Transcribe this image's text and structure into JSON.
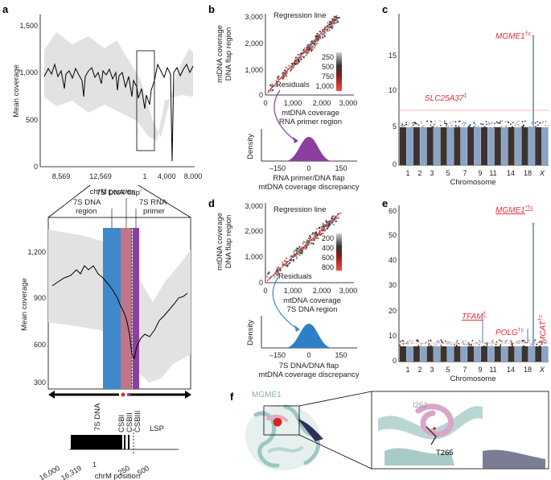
{
  "colors": {
    "dna_region": "#3f88c9",
    "flap": "#f4777f",
    "primer": "#8b3fa1",
    "cb_blue": "#8aa4c8",
    "cb_dark": "#3c3230",
    "sig_line": "#f4a6a6",
    "hit_red": "#e0303a"
  },
  "panels": {
    "a": "a",
    "b": "b",
    "c": "c",
    "d": "d",
    "e": "e",
    "f": "f"
  },
  "panel_a": {
    "top": {
      "ylabel": "Mean coverage",
      "yticks": [
        "1,500",
        "1,000",
        "500",
        "0"
      ],
      "xticks": [
        "8,569",
        "12,569",
        "1",
        "4,000",
        "8,000"
      ],
      "xlabel": "chrM position"
    },
    "zoom": {
      "ylabel": "Mean coverage",
      "yticks": [
        "1,200",
        "900",
        "600",
        "300"
      ],
      "region_label_1": "7S DNA",
      "region_label_2": "region",
      "flap_label": "7S DNA ‘flap’",
      "primer_label_1": "7S RNA",
      "primer_label_2": "primer"
    },
    "map": {
      "dna_label": "7S DNA",
      "csb": [
        "CSBI",
        "CSBII",
        "CSBIII"
      ],
      "lsp": "LSP",
      "xticks": [
        "16,000",
        "16,319",
        "1",
        "250",
        "500"
      ],
      "xlabel": "chrM position"
    }
  },
  "panel_b": {
    "ylabel_1": "mtDNA coverage",
    "ylabel_2": "DNA flap region",
    "regression": "Regression line",
    "residuals": "Residuals",
    "yticks": [
      "3,000",
      "2,000",
      "1,000",
      "0"
    ],
    "xticks": [
      "0",
      "1,000",
      "2,000",
      "3,000"
    ],
    "xlabel_1": "mtDNA coverage",
    "xlabel_2": "RNA primer region",
    "legend": [
      "250",
      "500",
      "750",
      "1,000"
    ],
    "density": {
      "ylabel": "Density",
      "xticks": [
        "–150",
        "0",
        "150"
      ],
      "xlabel_1": "RNA primer/DNA flap",
      "xlabel_2": "mtDNA coverage discrepancy"
    }
  },
  "panel_d": {
    "ylabel_1": "mtDNA coverage",
    "ylabel_2": "DNA flap region",
    "regression": "Regression line",
    "residuals": "Residuals",
    "yticks": [
      "3,000",
      "2,000",
      "1,000",
      "0"
    ],
    "xticks": [
      "0",
      "1,000",
      "2,000",
      "3,000"
    ],
    "xlabel_1": "mtDNA coverage",
    "xlabel_2": "7S DNA region",
    "legend": [
      "200",
      "400",
      "600",
      "800"
    ],
    "density": {
      "ylabel": "Density",
      "xticks": [
        "–150",
        "0",
        "150"
      ],
      "xlabel_1": "7S DNA/DNA flap",
      "xlabel_2": "mtDNA coverage discrepancy"
    }
  },
  "panel_c": {
    "yticks": [
      "15",
      "10",
      "5",
      "0"
    ],
    "xticks": [
      "1",
      "2",
      "3",
      "5",
      "7",
      "9",
      "11",
      "14",
      "18",
      "X"
    ],
    "xlabel": "Chromosome",
    "hit_1": "MGME1",
    "hit_1_sup": "†c",
    "hit_2": "SLC25A37",
    "hit_2_sup": "‡"
  },
  "panel_e": {
    "yticks": [
      "60",
      "50",
      "40",
      "30",
      "20",
      "10",
      "0"
    ],
    "xticks": [
      "1",
      "2",
      "3",
      "5",
      "7",
      "9",
      "11",
      "14",
      "18",
      "X"
    ],
    "xlabel": "Chromosome",
    "hit_1": "MGME1",
    "hit_1_sup": "*†c",
    "hit_2": "TFAM",
    "hit_2_sup": "†",
    "hit_3": "POLG",
    "hit_3_sup": "†c",
    "hit_4": "MCAT",
    "hit_4_sup": "†c"
  },
  "panel_f": {
    "protein": "MGME1",
    "res_1": "I262",
    "res_2": "T265"
  }
}
